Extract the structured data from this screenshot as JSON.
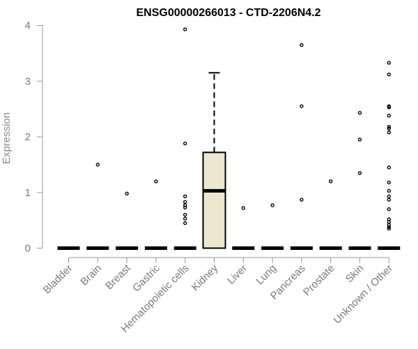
{
  "chart_data": {
    "type": "box",
    "title": "ENSG00000266013 - CTD-2206N4.2",
    "xlabel": "",
    "ylabel": "Expression",
    "ylim": [
      0,
      4
    ],
    "yticks": [
      0,
      1,
      2,
      3,
      4
    ],
    "grid": false,
    "legend": "none",
    "box_fill": "#ECE7CE",
    "categories": [
      "Bladder",
      "Brain",
      "Breast",
      "Gastric",
      "Hematopoietic cells",
      "Kidney",
      "Liver",
      "Lung",
      "Pancreas",
      "Prostate",
      "Skin",
      "Unknown / Other"
    ],
    "boxes": [
      {
        "category": "Bladder",
        "min": 0,
        "q1": 0,
        "median": 0,
        "q3": 0,
        "max": 0,
        "outliers": []
      },
      {
        "category": "Brain",
        "min": 0,
        "q1": 0,
        "median": 0,
        "q3": 0,
        "max": 0,
        "outliers": [
          1.5
        ]
      },
      {
        "category": "Breast",
        "min": 0,
        "q1": 0,
        "median": 0,
        "q3": 0,
        "max": 0,
        "outliers": [
          0.98
        ]
      },
      {
        "category": "Gastric",
        "min": 0,
        "q1": 0,
        "median": 0,
        "q3": 0,
        "max": 0,
        "outliers": [
          1.2
        ]
      },
      {
        "category": "Hematopoietic cells",
        "min": 0,
        "q1": 0,
        "median": 0,
        "q3": 0,
        "max": 0,
        "outliers": [
          3.93,
          1.88,
          0.93,
          0.83,
          0.77,
          0.73,
          0.6,
          0.53,
          0.45
        ]
      },
      {
        "category": "Kidney",
        "min": 0,
        "q1": 0,
        "median": 1.03,
        "q3": 1.72,
        "max": 3.15,
        "outliers": []
      },
      {
        "category": "Liver",
        "min": 0,
        "q1": 0,
        "median": 0,
        "q3": 0,
        "max": 0,
        "outliers": [
          0.72
        ]
      },
      {
        "category": "Lung",
        "min": 0,
        "q1": 0,
        "median": 0,
        "q3": 0,
        "max": 0,
        "outliers": [
          0.77
        ]
      },
      {
        "category": "Pancreas",
        "min": 0,
        "q1": 0,
        "median": 0,
        "q3": 0,
        "max": 0,
        "outliers": [
          3.65,
          2.55,
          0.87
        ]
      },
      {
        "category": "Prostate",
        "min": 0,
        "q1": 0,
        "median": 0,
        "q3": 0,
        "max": 0,
        "outliers": [
          1.2
        ]
      },
      {
        "category": "Skin",
        "min": 0,
        "q1": 0,
        "median": 0,
        "q3": 0,
        "max": 0,
        "outliers": [
          2.43,
          1.95,
          1.35
        ]
      },
      {
        "category": "Unknown / Other",
        "min": 0,
        "q1": 0,
        "median": 0,
        "q3": 0,
        "max": 0,
        "outliers": [
          3.33,
          3.12,
          2.55,
          2.53,
          2.38,
          2.18,
          2.15,
          2.08,
          1.45,
          1.18,
          1.03,
          0.93,
          0.87,
          0.7,
          0.52,
          0.47,
          0.42,
          0.38,
          0.35
        ]
      }
    ]
  }
}
